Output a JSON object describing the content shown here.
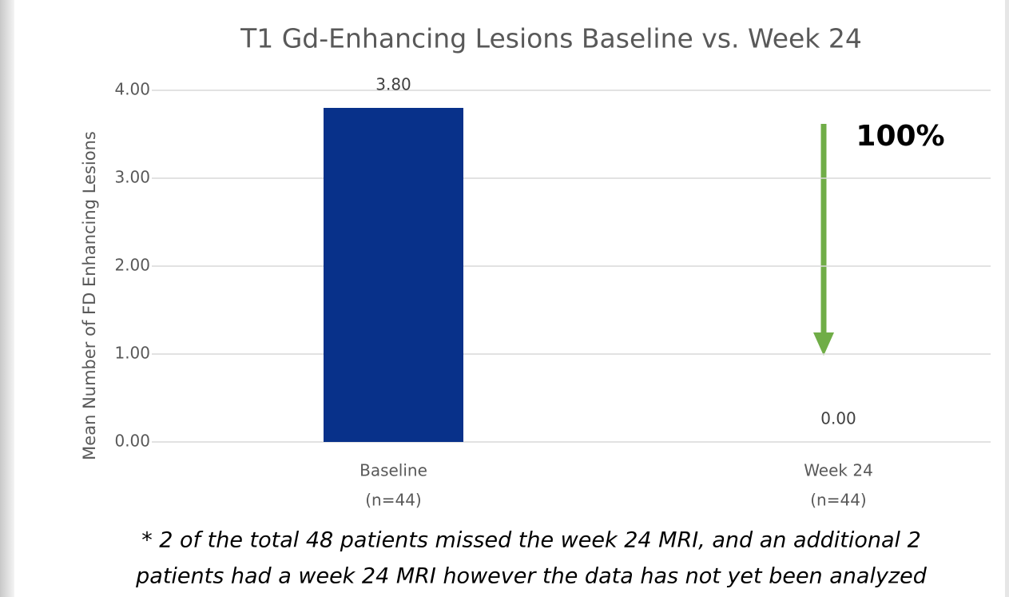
{
  "chart_data": {
    "type": "bar",
    "title": "T1 Gd-Enhancing Lesions Baseline vs. Week 24",
    "y_label": "Mean Number of FD Enhancing Lesions",
    "categories": [
      [
        "Baseline",
        "(n=44)"
      ],
      [
        "Week 24",
        "(n=44)"
      ]
    ],
    "values": [
      3.8,
      0
    ],
    "value_labels": [
      "3.80",
      "0.00"
    ],
    "colors": [
      "#08318a",
      "#7ab317"
    ],
    "ylim": [
      0,
      4
    ],
    "yticks": [
      {
        "value": 0,
        "label": "0.00"
      },
      {
        "value": 1,
        "label": "1.00"
      },
      {
        "value": 2,
        "label": "2.00"
      },
      {
        "value": 3,
        "label": "3.00"
      },
      {
        "value": 4,
        "label": "4.00"
      }
    ],
    "grid": true,
    "annotation": "100%",
    "footnote": [
      "* 2 of the total 48 patients missed the week 24 MRI, and an additional 2",
      "patients had a week 24 MRI however the data has not yet been analyzed"
    ]
  }
}
